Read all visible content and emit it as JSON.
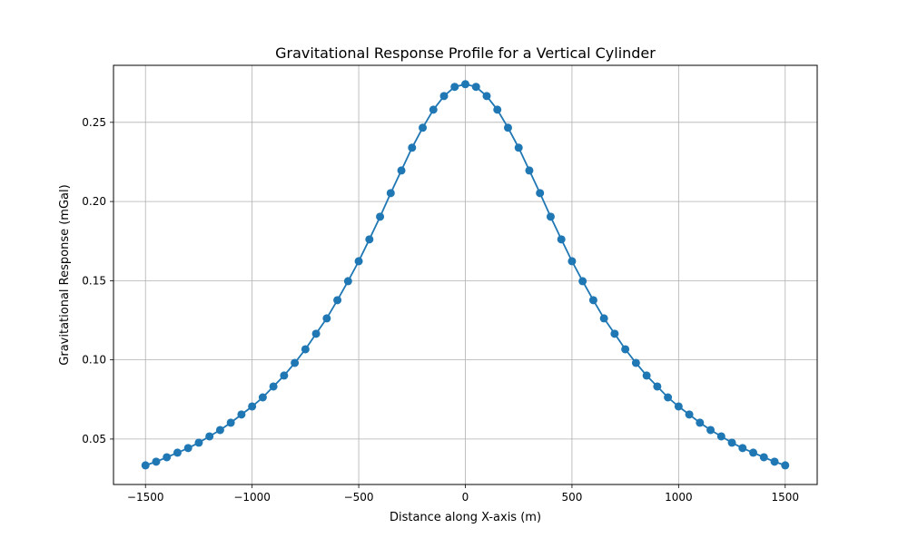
{
  "chart_data": {
    "type": "line",
    "title": "Gravitational Response Profile for a Vertical Cylinder",
    "xlabel": "Distance along X-axis (m)",
    "ylabel": "Gravitational Response (mGal)",
    "xlim": [
      -1650,
      1650
    ],
    "ylim": [
      0.0213,
      0.286
    ],
    "xticks": [
      -1500,
      -1000,
      -500,
      0,
      500,
      1000,
      1500
    ],
    "xtick_labels": [
      "−1500",
      "−1000",
      "−500",
      "0",
      "500",
      "1000",
      "1500"
    ],
    "yticks": [
      0.05,
      0.1,
      0.15,
      0.2,
      0.25
    ],
    "ytick_labels": [
      "0.05",
      "0.10",
      "0.15",
      "0.20",
      "0.25"
    ],
    "grid": true,
    "marker": "circle",
    "color": "#1f77b4",
    "series": [
      {
        "x": [
          -1500,
          -1450,
          -1400,
          -1350,
          -1300,
          -1250,
          -1200,
          -1150,
          -1100,
          -1050,
          -1000,
          -950,
          -900,
          -850,
          -800,
          -750,
          -700,
          -650,
          -600,
          -550,
          -500,
          -450,
          -400,
          -350,
          -300,
          -250,
          -200,
          -150,
          -100,
          -50,
          0,
          50,
          100,
          150,
          200,
          250,
          300,
          350,
          400,
          450,
          500,
          550,
          600,
          650,
          700,
          750,
          800,
          850,
          900,
          950,
          1000,
          1050,
          1100,
          1150,
          1200,
          1250,
          1300,
          1350,
          1400,
          1450,
          1500
        ],
        "y": [
          0.0334,
          0.0357,
          0.0385,
          0.0414,
          0.0443,
          0.0477,
          0.0517,
          0.0557,
          0.0603,
          0.0655,
          0.0706,
          0.0763,
          0.0832,
          0.0901,
          0.0981,
          0.1067,
          0.1165,
          0.1262,
          0.1377,
          0.1497,
          0.1623,
          0.1761,
          0.1904,
          0.2053,
          0.2196,
          0.234,
          0.2466,
          0.258,
          0.2666,
          0.2724,
          0.2741,
          0.2724,
          0.2666,
          0.258,
          0.2466,
          0.234,
          0.2196,
          0.2053,
          0.1904,
          0.1761,
          0.1623,
          0.1497,
          0.1377,
          0.1262,
          0.1165,
          0.1067,
          0.0981,
          0.0901,
          0.0832,
          0.0763,
          0.0706,
          0.0655,
          0.0603,
          0.0557,
          0.0517,
          0.0477,
          0.0443,
          0.0414,
          0.0385,
          0.0357,
          0.0334
        ]
      }
    ]
  }
}
